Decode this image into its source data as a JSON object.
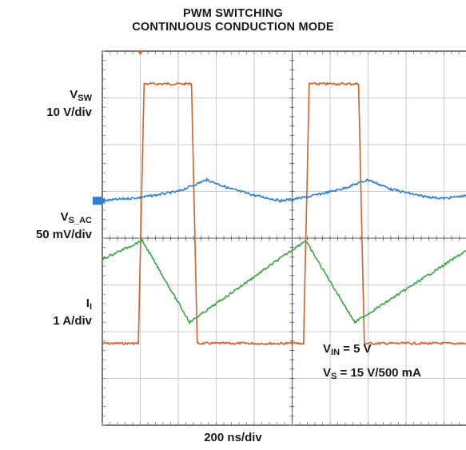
{
  "chart_data": {
    "type": "line",
    "title": "PWM SWITCHING",
    "subtitle": "CONTINUOUS CONDUCTION MODE",
    "xlabel": "200 ns/div",
    "grid": true,
    "divisions": {
      "x": 10,
      "y": 8
    },
    "xlim": [
      0,
      10
    ],
    "ylim": [
      0,
      8
    ],
    "channels": [
      {
        "name_main": "V",
        "name_sub": "SW",
        "scale": "10 V/div",
        "color": "#d2622e"
      },
      {
        "name_main": "V",
        "name_sub": "S_AC",
        "scale": "50 mV/div",
        "color": "#2d7fd1"
      },
      {
        "name_main": "I",
        "name_sub": "I",
        "scale": "1 A/div",
        "color": "#3aa547"
      }
    ],
    "series": [
      {
        "name": "VSW",
        "color": "#d2622e",
        "points": [
          [
            0,
            1.75
          ],
          [
            0.95,
            1.75
          ],
          [
            1.1,
            7.3
          ],
          [
            2.35,
            7.3
          ],
          [
            2.5,
            1.75
          ],
          [
            5.3,
            1.75
          ],
          [
            5.45,
            7.3
          ],
          [
            6.75,
            7.3
          ],
          [
            6.9,
            1.75
          ],
          [
            9.7,
            1.75
          ],
          [
            9.85,
            7.3
          ],
          [
            10,
            7.3
          ]
        ]
      },
      {
        "name": "VS_AC",
        "color": "#2d7fd1",
        "points": [
          [
            0,
            4.8
          ],
          [
            1,
            4.87
          ],
          [
            2,
            5.0
          ],
          [
            2.75,
            5.25
          ],
          [
            3.4,
            5.05
          ],
          [
            4,
            4.92
          ],
          [
            4.7,
            4.8
          ],
          [
            5.4,
            4.88
          ],
          [
            6.3,
            5.05
          ],
          [
            7,
            5.25
          ],
          [
            7.6,
            5.05
          ],
          [
            8.4,
            4.9
          ],
          [
            9,
            4.85
          ],
          [
            9.5,
            4.9
          ],
          [
            10,
            4.95
          ]
        ]
      },
      {
        "name": "II",
        "color": "#3aa547",
        "points": [
          [
            0,
            3.55
          ],
          [
            1.05,
            3.95
          ],
          [
            2.3,
            2.2
          ],
          [
            5.35,
            3.95
          ],
          [
            6.65,
            2.2
          ],
          [
            10,
            3.95
          ]
        ]
      }
    ],
    "annotations": [
      {
        "main": "V",
        "sub": "IN",
        "rest": " = 5 V"
      },
      {
        "main": "V",
        "sub": "S",
        "rest": " = 15 V/500 mA"
      }
    ]
  }
}
